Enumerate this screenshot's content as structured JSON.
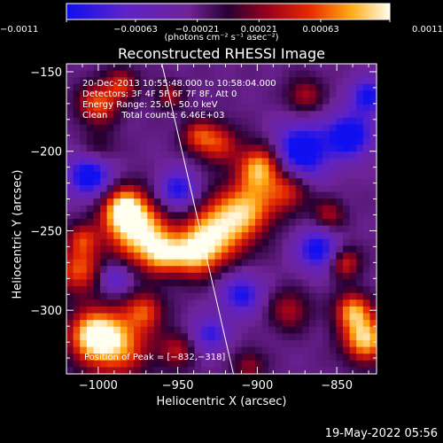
{
  "chart_data": {
    "type": "heatmap",
    "title": "Reconstructed RHESSI Image",
    "xlabel": "Heliocentric X (arcsec)",
    "ylabel": "Heliocentric Y (arcsec)",
    "xlim": [
      -1020,
      -825
    ],
    "ylim": [
      -340,
      -145
    ],
    "x_ticks": [
      "−1000",
      "−950",
      "−900",
      "−850"
    ],
    "x_tick_values": [
      -1000,
      -950,
      -900,
      -850
    ],
    "y_ticks": [
      "−150",
      "−200",
      "−250",
      "−300"
    ],
    "y_tick_values": [
      -150,
      -200,
      -250,
      -300
    ],
    "colorbar": {
      "ticks": [
        "−0.0011",
        "−0.00063",
        "−0.00021",
        "0.00021",
        "0.00063",
        "0.0011"
      ],
      "tick_values": [
        -0.0011,
        -0.00063,
        -0.00021,
        0.00021,
        0.00063,
        0.0011
      ],
      "range": [
        -0.0011,
        0.0011
      ],
      "unit_label": "(photons cm⁻² s⁻¹ asec⁻²)"
    },
    "info_lines": [
      "20-Dec-2013 10:55:48.000 to 10:58:04.000",
      "Detectors: 3F 4F 5F 6F 7F 8F, Att 0",
      "Energy Range: 25.0 - 50.0 keV",
      "Clean     Total counts: 6.46E+03"
    ],
    "peak_label": "Position of Peak = [−832,−318]",
    "peak_position": [
      -832,
      -318
    ],
    "limb_line": [
      [
        -960,
        -145
      ],
      [
        -915,
        -340
      ]
    ],
    "grid": false,
    "blobs": [
      [
        -975,
        -250,
        14,
        1.0
      ],
      [
        -985,
        -235,
        10,
        0.8
      ],
      [
        -960,
        -265,
        9,
        0.7
      ],
      [
        -925,
        -250,
        14,
        0.95
      ],
      [
        -905,
        -235,
        12,
        0.75
      ],
      [
        -940,
        -265,
        10,
        0.8
      ],
      [
        -898,
        -210,
        10,
        0.9
      ],
      [
        -880,
        -225,
        9,
        0.55
      ],
      [
        -925,
        -195,
        9,
        0.6
      ],
      [
        -938,
        -190,
        7,
        0.5
      ],
      [
        -990,
        -320,
        15,
        0.95
      ],
      [
        -1005,
        -315,
        10,
        0.7
      ],
      [
        -970,
        -300,
        8,
        0.55
      ],
      [
        -832,
        -318,
        10,
        1.0
      ],
      [
        -840,
        -300,
        8,
        0.8
      ],
      [
        -845,
        -270,
        7,
        0.6
      ],
      [
        -1000,
        -170,
        9,
        0.7
      ],
      [
        -985,
        -158,
        7,
        0.55
      ],
      [
        -1012,
        -275,
        10,
        0.7
      ],
      [
        -1010,
        -255,
        7,
        0.55
      ],
      [
        -880,
        -300,
        9,
        0.45
      ],
      [
        -855,
        -240,
        7,
        0.45
      ],
      [
        -950,
        -325,
        8,
        0.45
      ],
      [
        -905,
        -335,
        7,
        0.4
      ],
      [
        -870,
        -165,
        8,
        0.45
      ],
      [
        -1000,
        -200,
        8,
        0.35
      ],
      [
        -955,
        -165,
        6,
        0.45
      ]
    ],
    "dips": [
      [
        -1005,
        -215,
        10,
        0.9
      ],
      [
        -872,
        -200,
        12,
        0.95
      ],
      [
        -842,
        -190,
        10,
        0.9
      ],
      [
        -862,
        -262,
        9,
        0.8
      ],
      [
        -950,
        -225,
        9,
        0.75
      ],
      [
        -910,
        -290,
        9,
        0.7
      ],
      [
        -830,
        -165,
        8,
        0.75
      ],
      [
        -990,
        -280,
        7,
        0.55
      ],
      [
        -930,
        -315,
        8,
        0.6
      ]
    ]
  }
}
